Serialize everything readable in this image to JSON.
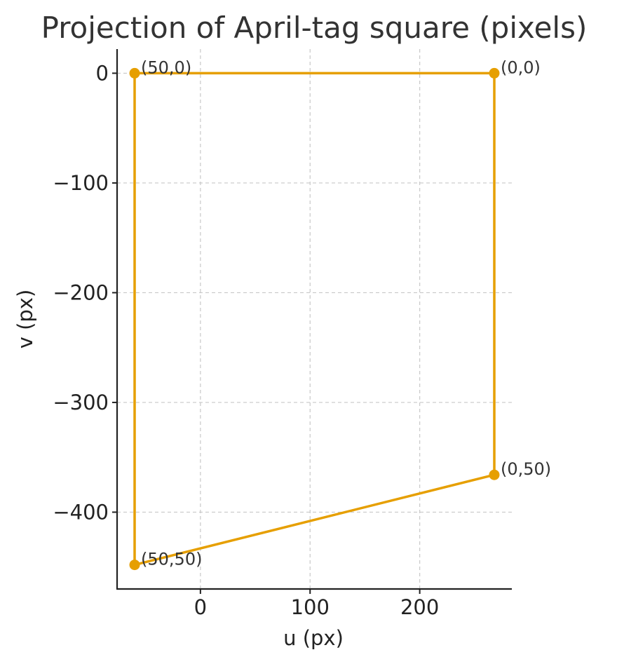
{
  "chart_data": {
    "type": "line",
    "title": "Projection of April-tag square (pixels)",
    "xlabel": "u (px)",
    "ylabel": "v (px)",
    "xlim": [
      -76,
      284
    ],
    "ylim": [
      -470,
      22
    ],
    "xticks": [
      0,
      100,
      200
    ],
    "yticks": [
      0,
      -100,
      -200,
      -300,
      -400
    ],
    "xtick_labels": [
      "0",
      "100",
      "200"
    ],
    "ytick_labels": [
      "0",
      "−100",
      "−200",
      "−300",
      "−400"
    ],
    "grid": true,
    "color": "#E69F00",
    "series": [
      {
        "points": [
          {
            "label": "(0,0)",
            "u": 268,
            "v": 0
          },
          {
            "label": "(50,0)",
            "u": -60,
            "v": 0
          },
          {
            "label": "(50,50)",
            "u": -60,
            "v": -448
          },
          {
            "label": "(0,50)",
            "u": 268,
            "v": -366
          }
        ],
        "closed": true
      }
    ]
  }
}
